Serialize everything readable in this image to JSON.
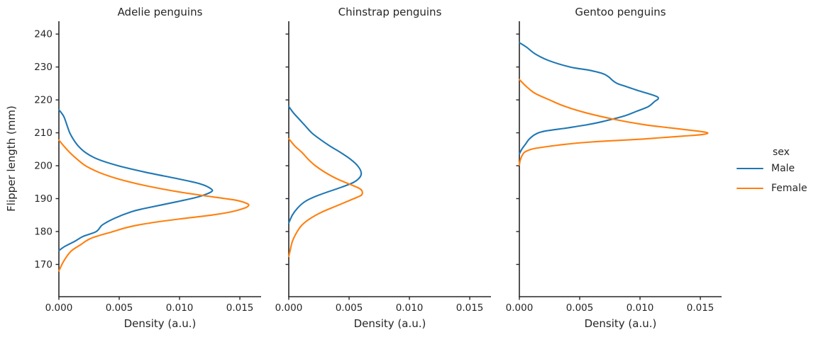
{
  "figure": {
    "background": "#ffffff",
    "text_color": "#262626",
    "spine_color": "#262626",
    "ylabel": "Flipper length (mm)"
  },
  "legend": {
    "title": "sex",
    "position": "center right, outside axes",
    "entries": [
      {
        "label": "Male",
        "color": "#1f77b4"
      },
      {
        "label": "Female",
        "color": "#ff7f0e"
      }
    ]
  },
  "chart_data": [
    {
      "type": "line",
      "kind": "kde-density",
      "orientation": "density on x axis, flipper length on y axis",
      "title": "Adelie penguins",
      "xlabel": "Density (a.u.)",
      "ylabel": "Flipper length (mm)",
      "grid": false,
      "xlim": [
        0,
        0.01676
      ],
      "ylim": [
        160.2,
        243.9
      ],
      "xticks": [
        0,
        0.005,
        0.01,
        0.015
      ],
      "xtick_labels": [
        "0.000",
        "0.005",
        "0.010",
        "0.015"
      ],
      "yticks": [
        240,
        230,
        220,
        210,
        200,
        190,
        180,
        170
      ],
      "show_ytick_labels": true,
      "series": [
        {
          "name": "Male",
          "color": "#1f77b4",
          "points_mm_density": [
            [
              217,
              0
            ],
            [
              215,
              0.0004
            ],
            [
              212,
              0.0007
            ],
            [
              210,
              0.0009
            ],
            [
              208,
              0.0012
            ],
            [
              206,
              0.0016
            ],
            [
              204,
              0.0022
            ],
            [
              202,
              0.0032
            ],
            [
              200,
              0.0049
            ],
            [
              198,
              0.0072
            ],
            [
              196,
              0.0099
            ],
            [
              194.5,
              0.0117
            ],
            [
              193,
              0.0126
            ],
            [
              192,
              0.0126
            ],
            [
              190.5,
              0.0115
            ],
            [
              189,
              0.0097
            ],
            [
              187,
              0.0071
            ],
            [
              186,
              0.006
            ],
            [
              184,
              0.0046
            ],
            [
              182,
              0.0036
            ],
            [
              180,
              0.0031
            ],
            [
              178.5,
              0.002
            ],
            [
              177,
              0.0013
            ],
            [
              175.5,
              0.0005
            ],
            [
              174.2,
              0
            ]
          ]
        },
        {
          "name": "Female",
          "color": "#ff7f0e",
          "points_mm_density": [
            [
              207.8,
              0
            ],
            [
              206,
              0.0004
            ],
            [
              204,
              0.0009
            ],
            [
              202,
              0.0015
            ],
            [
              200,
              0.0022
            ],
            [
              198,
              0.0033
            ],
            [
              196,
              0.0049
            ],
            [
              194,
              0.0071
            ],
            [
              192,
              0.01
            ],
            [
              190.5,
              0.0128
            ],
            [
              189.5,
              0.0147
            ],
            [
              188.5,
              0.0156
            ],
            [
              187.8,
              0.0157
            ],
            [
              187,
              0.0153
            ],
            [
              186,
              0.0143
            ],
            [
              185,
              0.0127
            ],
            [
              184,
              0.0104
            ],
            [
              183,
              0.0083
            ],
            [
              182,
              0.0066
            ],
            [
              181,
              0.0054
            ],
            [
              180,
              0.0045
            ],
            [
              178,
              0.0027
            ],
            [
              176,
              0.0018
            ],
            [
              174,
              0.001
            ],
            [
              171,
              0.0004
            ],
            [
              168,
              0
            ]
          ]
        }
      ]
    },
    {
      "type": "line",
      "kind": "kde-density",
      "orientation": "density on x axis, flipper length on y axis",
      "title": "Chinstrap penguins",
      "xlabel": "Density (a.u.)",
      "ylabel": "Flipper length (mm)",
      "grid": false,
      "xlim": [
        0,
        0.01676
      ],
      "ylim": [
        160.2,
        243.9
      ],
      "xticks": [
        0,
        0.005,
        0.01,
        0.015
      ],
      "xtick_labels": [
        "0.000",
        "0.005",
        "0.010",
        "0.015"
      ],
      "yticks": [
        240,
        230,
        220,
        210,
        200,
        190,
        180,
        170
      ],
      "show_ytick_labels": false,
      "series": [
        {
          "name": "Male",
          "color": "#1f77b4",
          "points_mm_density": [
            [
              218,
              0
            ],
            [
              216,
              0.0004
            ],
            [
              214,
              0.0009
            ],
            [
              212,
              0.0014
            ],
            [
              210,
              0.0019
            ],
            [
              208,
              0.0026
            ],
            [
              206,
              0.0034
            ],
            [
              204,
              0.0043
            ],
            [
              202,
              0.0051
            ],
            [
              200,
              0.0057
            ],
            [
              198,
              0.006
            ],
            [
              196.5,
              0.0059
            ],
            [
              195,
              0.0054
            ],
            [
              193.5,
              0.0044
            ],
            [
              192,
              0.0032
            ],
            [
              190.5,
              0.0021
            ],
            [
              189,
              0.0013
            ],
            [
              187,
              0.0007
            ],
            [
              185,
              0.0003
            ],
            [
              182.6,
              0
            ]
          ]
        },
        {
          "name": "Female",
          "color": "#ff7f0e",
          "points_mm_density": [
            [
              208.2,
              0
            ],
            [
              206,
              0.0005
            ],
            [
              204,
              0.0011
            ],
            [
              202,
              0.0016
            ],
            [
              200,
              0.0022
            ],
            [
              198,
              0.003
            ],
            [
              196,
              0.004
            ],
            [
              194,
              0.0053
            ],
            [
              193,
              0.0059
            ],
            [
              192,
              0.0061
            ],
            [
              191,
              0.006
            ],
            [
              190,
              0.0054
            ],
            [
              188,
              0.0041
            ],
            [
              186,
              0.0028
            ],
            [
              184,
              0.0018
            ],
            [
              182,
              0.0011
            ],
            [
              180,
              0.0007
            ],
            [
              177,
              0.0003
            ],
            [
              174,
              0.0001
            ],
            [
              172.4,
              0
            ]
          ]
        }
      ]
    },
    {
      "type": "line",
      "kind": "kde-density",
      "orientation": "density on x axis, flipper length on y axis",
      "title": "Gentoo penguins",
      "xlabel": "Density (a.u.)",
      "ylabel": "Flipper length (mm)",
      "grid": false,
      "xlim": [
        0,
        0.01676
      ],
      "ylim": [
        160.2,
        243.9
      ],
      "xticks": [
        0,
        0.005,
        0.01,
        0.015
      ],
      "xtick_labels": [
        "0.000",
        "0.005",
        "0.010",
        "0.015"
      ],
      "yticks": [
        240,
        230,
        220,
        210,
        200,
        190,
        180,
        170
      ],
      "show_ytick_labels": false,
      "series": [
        {
          "name": "Male",
          "color": "#1f77b4",
          "points_mm_density": [
            [
              237.4,
              0
            ],
            [
              236,
              0.0006
            ],
            [
              234,
              0.0013
            ],
            [
              232,
              0.0024
            ],
            [
              230,
              0.0042
            ],
            [
              229,
              0.0058
            ],
            [
              228,
              0.0069
            ],
            [
              227,
              0.0074
            ],
            [
              226,
              0.0077
            ],
            [
              225,
              0.0081
            ],
            [
              224,
              0.0089
            ],
            [
              223,
              0.0097
            ],
            [
              222,
              0.0106
            ],
            [
              221,
              0.0114
            ],
            [
              220.3,
              0.0115
            ],
            [
              219.5,
              0.0112
            ],
            [
              218,
              0.0107
            ],
            [
              216.5,
              0.0097
            ],
            [
              215,
              0.0086
            ],
            [
              213.5,
              0.007
            ],
            [
              212.5,
              0.0057
            ],
            [
              211.5,
              0.004
            ],
            [
              210.5,
              0.0021
            ],
            [
              209.5,
              0.0013
            ],
            [
              208,
              0.0008
            ],
            [
              206.5,
              0.0005
            ],
            [
              205,
              0.0002
            ],
            [
              203.6,
              0
            ]
          ]
        },
        {
          "name": "Female",
          "color": "#ff7f0e",
          "points_mm_density": [
            [
              226.2,
              0
            ],
            [
              224,
              0.0006
            ],
            [
              222,
              0.0013
            ],
            [
              220,
              0.0025
            ],
            [
              218,
              0.0038
            ],
            [
              216,
              0.0056
            ],
            [
              214,
              0.008
            ],
            [
              212.5,
              0.0103
            ],
            [
              211.5,
              0.0125
            ],
            [
              210.5,
              0.0148
            ],
            [
              210,
              0.0156
            ],
            [
              209.5,
              0.0152
            ],
            [
              209,
              0.0136
            ],
            [
              208.5,
              0.0117
            ],
            [
              208,
              0.0098
            ],
            [
              207.5,
              0.0072
            ],
            [
              207,
              0.0052
            ],
            [
              206.5,
              0.0038
            ],
            [
              206,
              0.0027
            ],
            [
              205.5,
              0.0017
            ],
            [
              205,
              0.001
            ],
            [
              204,
              0.0004
            ],
            [
              202,
              0.0001
            ],
            [
              200.2,
              0
            ]
          ]
        }
      ]
    }
  ]
}
